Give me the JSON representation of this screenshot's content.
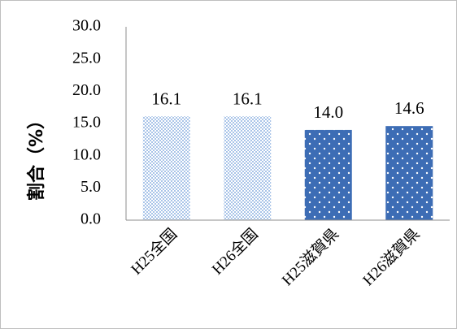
{
  "chart_data": {
    "type": "bar",
    "title": "",
    "xlabel": "",
    "ylabel": "割合（%）",
    "ylim": [
      0,
      30
    ],
    "yticks": [
      "0.0",
      "5.0",
      "10.0",
      "15.0",
      "20.0",
      "25.0",
      "30.0"
    ],
    "categories": [
      "H25全国",
      "H26全国",
      "H25滋賀県",
      "H26滋賀県"
    ],
    "values": [
      16.1,
      16.1,
      14.0,
      14.6
    ],
    "data_labels": [
      "16.1",
      "16.1",
      "14.0",
      "14.6"
    ],
    "bar_styles": [
      "checker-light",
      "checker-light",
      "dotted-dark",
      "dotted-dark"
    ],
    "colors": {
      "checker_light": "#a9c4e8",
      "checker_bg": "#ffffff",
      "dotted_dark": "#3d6db5",
      "dot": "#ffffff",
      "axis": "#8c8c8c"
    },
    "grid": false,
    "legend": "none"
  }
}
